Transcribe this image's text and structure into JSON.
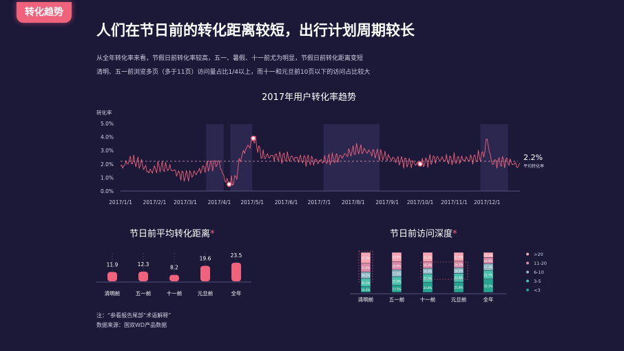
{
  "tag": "转化趋势",
  "headline": "人们在节日前的转化距离较短，出行计划周期较长",
  "desc": [
    "从全年转化率来看，节假日前转化率较高，五一、暑假、十一前尤为明显，节假日前转化距离变短",
    "清明、五一前浏览多页（多于11页）访问量占比1/4以上，而十一和元旦前10页以下的访问占比较大"
  ],
  "notes": [
    "注：“参看报告尾部“术语解释”",
    "数据来源：国双WD产品数据"
  ],
  "colors": {
    "accent": "#f0637c",
    "teal": "#2bbfa7",
    "pink": "#f9a6b4",
    "band": "#3a3560"
  },
  "chart_data": [
    {
      "type": "line",
      "title": "2017年用户转化率趋势",
      "ylabel": "转化率",
      "y_ticks": [
        "0.0%",
        "1.0%",
        "2.0%",
        "3.0%",
        "4.0%",
        "5.0%"
      ],
      "ylim": [
        0,
        5
      ],
      "x_ticks": [
        "2017/1/1",
        "2017/2/1",
        "2017/3/1",
        "2017/4/1",
        "2017/5/1",
        "2017/6/1",
        "2017/7/1",
        "2017/8/1",
        "2017/9/1",
        "2017/10/1",
        "2017/11/1",
        "2017/12/1"
      ],
      "avg_value": "2.2%",
      "avg_label": "平均转化率",
      "holiday_bands": [
        [
          "2017/3/20",
          "2017/4/5"
        ],
        [
          "2017/4/11",
          "2017/5/1"
        ],
        [
          "2017/7/5",
          "2017/8/25"
        ],
        [
          "2017/11/25",
          "2017/12/20"
        ]
      ],
      "keypoints": [
        [
          "2017/1/1",
          1.7
        ],
        [
          "2017/1/10",
          2.3
        ],
        [
          "2017/1/20",
          2.0
        ],
        [
          "2017/1/27",
          1.4
        ],
        [
          "2017/2/5",
          1.8
        ],
        [
          "2017/2/15",
          1.7
        ],
        [
          "2017/2/22",
          1.3
        ],
        [
          "2017/3/1",
          1.1
        ],
        [
          "2017/3/10",
          1.3
        ],
        [
          "2017/3/20",
          1.8
        ],
        [
          "2017/3/28",
          2.0
        ],
        [
          "2017/4/1",
          2.1
        ],
        [
          "2017/4/5",
          1.0
        ],
        [
          "2017/4/10",
          0.5
        ],
        [
          "2017/4/16",
          0.9
        ],
        [
          "2017/4/20",
          2.4
        ],
        [
          "2017/4/25",
          3.1
        ],
        [
          "2017/4/30",
          3.5
        ],
        [
          "2017/5/2",
          3.9
        ],
        [
          "2017/5/10",
          2.6
        ],
        [
          "2017/6/1",
          2.5
        ],
        [
          "2017/7/1",
          2.2
        ],
        [
          "2017/7/20",
          2.5
        ],
        [
          "2017/8/5",
          3.1
        ],
        [
          "2017/8/25",
          2.7
        ],
        [
          "2017/9/5",
          2.4
        ],
        [
          "2017/9/20",
          2.1
        ],
        [
          "2017/10/1",
          2.0
        ],
        [
          "2017/10/15",
          2.4
        ],
        [
          "2017/10/30",
          2.3
        ],
        [
          "2017/11/20",
          2.4
        ],
        [
          "2017/11/28",
          2.7
        ],
        [
          "2017/12/1",
          3.9
        ],
        [
          "2017/12/5",
          2.1
        ],
        [
          "2017/12/20",
          2.2
        ],
        [
          "2017/12/31",
          1.8
        ]
      ],
      "markers": [
        [
          "2017/4/10",
          0.5
        ],
        [
          "2017/5/2",
          3.9
        ],
        [
          "2017/10/1",
          2.0
        ]
      ]
    },
    {
      "type": "bar",
      "title": "节日前平均转化距离",
      "title_mark": "*",
      "categories": [
        "清明前",
        "五一前",
        "十一前",
        "元旦前",
        "全年"
      ],
      "values": [
        11.9,
        12.3,
        8.2,
        19.6,
        23.5
      ],
      "value_labels": [
        "11.9",
        "12.3",
        "8.2",
        "19.6",
        "23.5"
      ]
    },
    {
      "type": "bar",
      "stacked": true,
      "title": "节日前访问深度",
      "title_mark": "*",
      "categories": [
        "清明前",
        "五一前",
        "十一前",
        "元旦前",
        "全年"
      ],
      "legend": [
        ">20",
        "11-20",
        "6-10",
        "3-5",
        "<3"
      ],
      "legend_position": "right",
      "series_colors": [
        "#f9a6b4",
        "#d88aa6",
        "#8db8c4",
        "#49c2ae",
        "#26a48f"
      ],
      "series": [
        {
          "name": ">20",
          "values": [
            27.3,
            22.9,
            23.3,
            21.9,
            13.1
          ]
        },
        {
          "name": "11-20",
          "values": [
            21.8,
            20.8,
            16.3,
            16.3,
            14.6
          ]
        },
        {
          "name": "6-10",
          "values": [
            16.2,
            17.2,
            14.3,
            14.2,
            17.3
          ]
        },
        {
          "name": "3-5",
          "values": [
            20.3,
            21.6,
            21.3,
            21.8,
            21.7
          ]
        },
        {
          "name": "<3",
          "values": [
            14.4,
            17.5,
            24.8,
            25.8,
            33.3
          ]
        }
      ]
    }
  ]
}
